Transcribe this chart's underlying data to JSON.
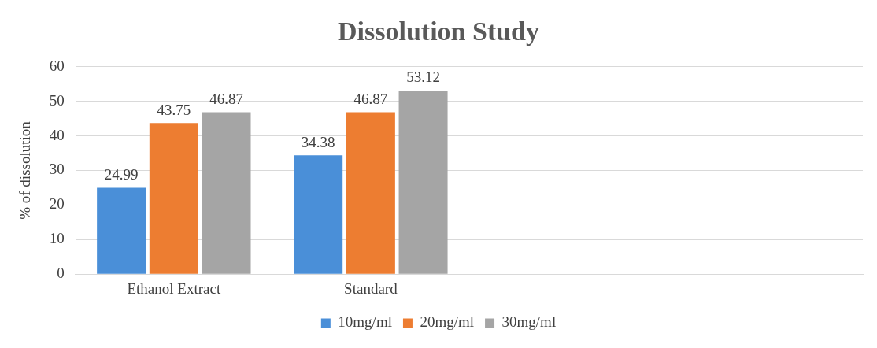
{
  "chart_data": {
    "type": "bar",
    "title": "Dissolution Study",
    "ylabel": "% of dissolution",
    "categories": [
      "Ethanol Extract",
      "Standard",
      null,
      null
    ],
    "series": [
      {
        "name": "10mg/ml",
        "color": "#4a8fd8",
        "values": [
          24.99,
          34.38,
          null,
          null
        ]
      },
      {
        "name": "20mg/ml",
        "color": "#ed7d31",
        "values": [
          43.75,
          46.87,
          null,
          null
        ]
      },
      {
        "name": "30mg/ml",
        "color": "#a5a5a5",
        "values": [
          46.87,
          53.12,
          null,
          null
        ]
      }
    ],
    "ylim": [
      0,
      60
    ],
    "yticks": [
      0,
      10,
      20,
      30,
      40,
      50,
      60
    ],
    "grid": "y",
    "legend": "bottom",
    "data_labels": true
  }
}
